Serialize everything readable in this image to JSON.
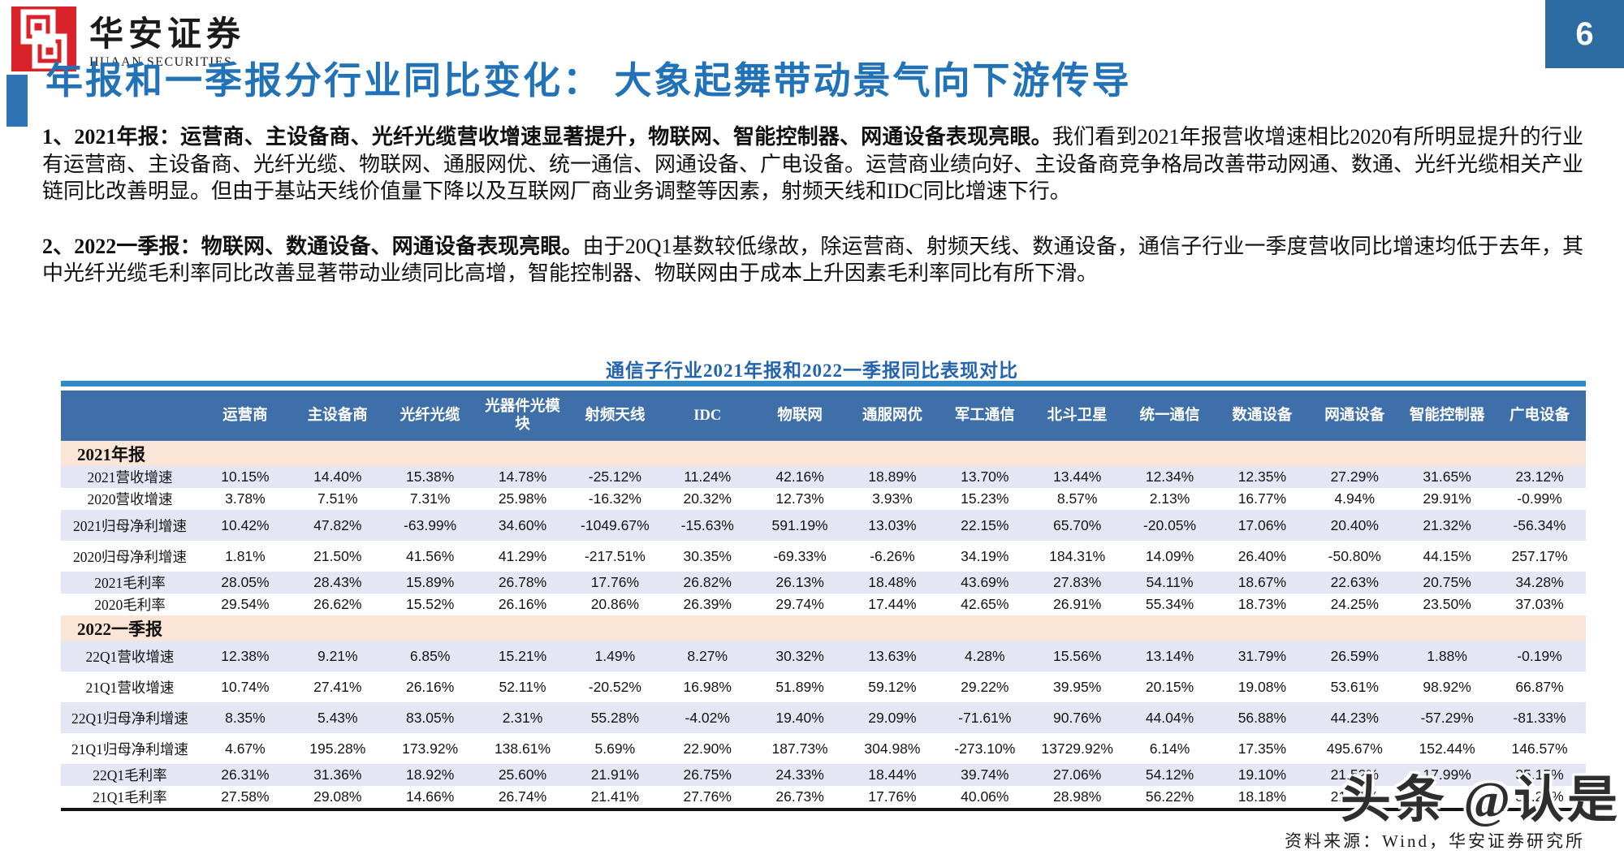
{
  "brand": {
    "company_cn": "华安证券",
    "company_en": "HUAAN SECURITIES"
  },
  "page_number": "6",
  "title": "年报和一季报分行业同比变化： 大象起舞带动景气向下游传导",
  "paragraphs": [
    {
      "bold": "1、2021年报：运营商、主设备商、光纤光缆营收增速显著提升，物联网、智能控制器、网通设备表现亮眼。",
      "text": "我们看到2021年报营收增速相比2020有所明显提升的行业有运营商、主设备商、光纤光缆、物联网、通服网优、统一通信、网通设备、广电设备。运营商业绩向好、主设备商竞争格局改善带动网通、数通、光纤光缆相关产业链同比改善明显。但由于基站天线价值量下降以及互联网厂商业务调整等因素，射频天线和IDC同比增速下行。"
    },
    {
      "bold": "2、2022一季报：物联网、数通设备、网通设备表现亮眼。",
      "text": "由于20Q1基数较低缘故，除运营商、射频天线、数通设备，通信子行业一季度营收同比增速均低于去年，其中光纤光缆毛利率同比改善显著带动业绩同比高增，智能控制器、物联网由于成本上升因素毛利率同比有所下滑。"
    }
  ],
  "table": {
    "title": "通信子行业2021年报和2022一季报同比表现对比",
    "columns": [
      "",
      "运营商",
      "主设备商",
      "光纤光缆",
      "光器件光模块",
      "射频天线",
      "IDC",
      "物联网",
      "通服网优",
      "军工通信",
      "北斗卫星",
      "统一通信",
      "数通设备",
      "网通设备",
      "智能控制器",
      "广电设备"
    ],
    "rows": [
      {
        "type": "section",
        "label": "2021年报"
      },
      {
        "type": "data",
        "shade": true,
        "tall": false,
        "label": "2021营收增速",
        "values": [
          "10.15%",
          "14.40%",
          "15.38%",
          "14.78%",
          "-25.12%",
          "11.24%",
          "42.16%",
          "18.89%",
          "13.70%",
          "13.44%",
          "12.34%",
          "12.35%",
          "27.29%",
          "31.65%",
          "23.12%"
        ]
      },
      {
        "type": "data",
        "shade": false,
        "tall": false,
        "label": "2020营收增速",
        "values": [
          "3.78%",
          "7.51%",
          "7.31%",
          "25.98%",
          "-16.32%",
          "20.32%",
          "12.73%",
          "3.93%",
          "15.23%",
          "8.57%",
          "2.13%",
          "16.77%",
          "4.94%",
          "29.91%",
          "-0.99%"
        ]
      },
      {
        "type": "data",
        "shade": true,
        "tall": true,
        "label": "2021归母净利增速",
        "values": [
          "10.42%",
          "47.82%",
          "-63.99%",
          "34.60%",
          "-1049.67%",
          "-15.63%",
          "591.19%",
          "13.03%",
          "22.15%",
          "65.70%",
          "-20.05%",
          "17.06%",
          "20.40%",
          "21.32%",
          "-56.34%"
        ]
      },
      {
        "type": "data",
        "shade": false,
        "tall": true,
        "label": "2020归母净利增速",
        "values": [
          "1.81%",
          "21.50%",
          "41.56%",
          "41.29%",
          "-217.51%",
          "30.35%",
          "-69.33%",
          "-6.26%",
          "34.19%",
          "184.31%",
          "14.09%",
          "26.40%",
          "-50.80%",
          "44.15%",
          "257.17%"
        ]
      },
      {
        "type": "data",
        "shade": true,
        "tall": false,
        "label": "2021毛利率",
        "values": [
          "28.05%",
          "28.43%",
          "15.89%",
          "26.78%",
          "17.76%",
          "26.82%",
          "26.13%",
          "18.48%",
          "43.69%",
          "27.83%",
          "54.11%",
          "18.67%",
          "22.63%",
          "20.75%",
          "34.28%"
        ]
      },
      {
        "type": "data",
        "shade": false,
        "tall": false,
        "label": "2020毛利率",
        "values": [
          "29.54%",
          "26.62%",
          "15.52%",
          "26.16%",
          "20.86%",
          "26.39%",
          "29.74%",
          "17.44%",
          "42.65%",
          "26.91%",
          "55.34%",
          "18.73%",
          "24.25%",
          "23.50%",
          "37.03%"
        ]
      },
      {
        "type": "section",
        "label": "2022一季报"
      },
      {
        "type": "data",
        "shade": true,
        "tall": true,
        "label": "22Q1营收增速",
        "values": [
          "12.38%",
          "9.21%",
          "6.85%",
          "15.21%",
          "1.49%",
          "8.27%",
          "30.32%",
          "13.63%",
          "4.28%",
          "15.56%",
          "13.14%",
          "31.79%",
          "26.59%",
          "1.88%",
          "-0.19%"
        ]
      },
      {
        "type": "data",
        "shade": false,
        "tall": true,
        "label": "21Q1营收增速",
        "values": [
          "10.74%",
          "27.41%",
          "26.16%",
          "52.11%",
          "-20.52%",
          "16.98%",
          "51.89%",
          "59.12%",
          "29.22%",
          "39.95%",
          "20.15%",
          "19.08%",
          "53.61%",
          "98.92%",
          "66.87%"
        ]
      },
      {
        "type": "data",
        "shade": true,
        "tall": true,
        "label": "22Q1归母净利增速",
        "values": [
          "8.35%",
          "5.43%",
          "83.05%",
          "2.31%",
          "55.28%",
          "-4.02%",
          "19.40%",
          "29.09%",
          "-71.61%",
          "90.76%",
          "44.04%",
          "56.88%",
          "44.23%",
          "-57.29%",
          "-81.33%"
        ]
      },
      {
        "type": "data",
        "shade": false,
        "tall": true,
        "label": "21Q1归母净利增速",
        "values": [
          "4.67%",
          "195.28%",
          "173.92%",
          "138.61%",
          "5.69%",
          "22.90%",
          "187.73%",
          "304.98%",
          "-273.10%",
          "13729.92%",
          "6.14%",
          "17.35%",
          "495.67%",
          "152.44%",
          "146.57%"
        ]
      },
      {
        "type": "data",
        "shade": true,
        "tall": false,
        "label": "22Q1毛利率",
        "values": [
          "26.31%",
          "31.36%",
          "18.92%",
          "25.60%",
          "21.91%",
          "26.75%",
          "24.33%",
          "18.44%",
          "39.74%",
          "27.06%",
          "54.12%",
          "19.10%",
          "21.52%",
          "17.99%",
          "35.15%"
        ]
      },
      {
        "type": "data",
        "shade": false,
        "tall": false,
        "label": "21Q1毛利率",
        "values": [
          "27.58%",
          "29.08%",
          "14.66%",
          "26.74%",
          "21.41%",
          "27.76%",
          "26.73%",
          "17.76%",
          "40.06%",
          "28.98%",
          "56.22%",
          "18.18%",
          "21.31%",
          "",
          "32.29%"
        ]
      }
    ]
  },
  "footer": {
    "source": "资料来源：Wind，华安证券研究所"
  },
  "watermark": "头条 @认是",
  "colors": {
    "accent_blue": "#2272b8",
    "table_header_blue": "#3e6fa8",
    "section_peach": "#fbe5d6",
    "row_lavender": "#e4e6f3",
    "divider_cyan": "#2e8ac8",
    "logo_red": "#d8232a",
    "page_box_blue": "#2d6ca3"
  }
}
